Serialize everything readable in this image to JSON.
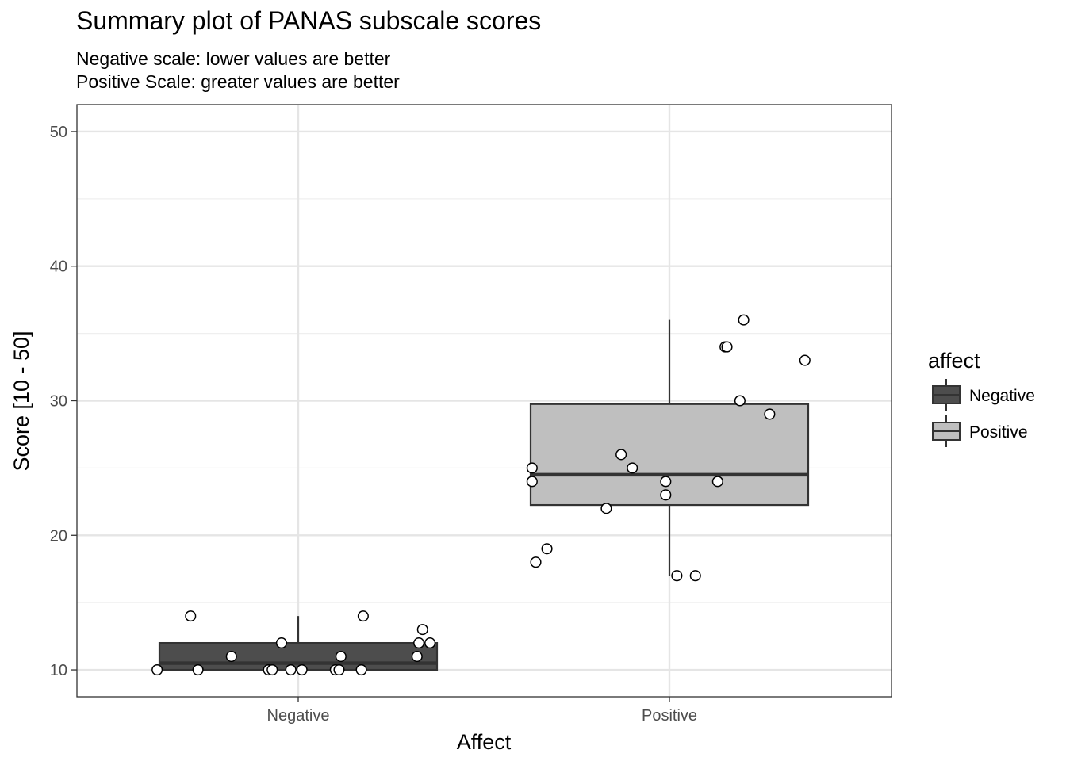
{
  "chart_data": {
    "type": "box",
    "title": "Summary plot of PANAS subscale scores",
    "subtitle": [
      "Negative scale: lower values are better",
      "Positive Scale: greater values are better"
    ],
    "xlabel": "Affect",
    "ylabel": "Score [10 - 50]",
    "categories": [
      "Negative",
      "Positive"
    ],
    "ylim": [
      8,
      52
    ],
    "yticks": [
      10,
      20,
      30,
      40,
      50
    ],
    "grid": true,
    "legend": {
      "title": "affect",
      "position": "right",
      "entries": [
        {
          "label": "Negative",
          "color": "#4d4d4d"
        },
        {
          "label": "Positive",
          "color": "#bfbfbf"
        }
      ]
    },
    "boxes": [
      {
        "category": "Negative",
        "fill": "#4d4d4d",
        "min": 10,
        "q1": 10,
        "median": 10.5,
        "q3": 12,
        "max": 14
      },
      {
        "category": "Positive",
        "fill": "#bfbfbf",
        "min": 17,
        "q1": 22.25,
        "median": 24.5,
        "q3": 29.75,
        "max": 36
      }
    ],
    "points": [
      {
        "category": "Negative",
        "jitter": -0.38,
        "value": 10
      },
      {
        "category": "Negative",
        "jitter": -0.29,
        "value": 14
      },
      {
        "category": "Negative",
        "jitter": -0.27,
        "value": 10
      },
      {
        "category": "Negative",
        "jitter": -0.18,
        "value": 11
      },
      {
        "category": "Negative",
        "jitter": -0.08,
        "value": 10
      },
      {
        "category": "Negative",
        "jitter": -0.07,
        "value": 10
      },
      {
        "category": "Negative",
        "jitter": -0.045,
        "value": 12
      },
      {
        "category": "Negative",
        "jitter": -0.02,
        "value": 10
      },
      {
        "category": "Negative",
        "jitter": 0.01,
        "value": 10
      },
      {
        "category": "Negative",
        "jitter": 0.1,
        "value": 10
      },
      {
        "category": "Negative",
        "jitter": 0.11,
        "value": 10
      },
      {
        "category": "Negative",
        "jitter": 0.115,
        "value": 11
      },
      {
        "category": "Negative",
        "jitter": 0.17,
        "value": 10
      },
      {
        "category": "Negative",
        "jitter": 0.175,
        "value": 14
      },
      {
        "category": "Negative",
        "jitter": 0.32,
        "value": 11
      },
      {
        "category": "Negative",
        "jitter": 0.325,
        "value": 12
      },
      {
        "category": "Negative",
        "jitter": 0.335,
        "value": 13
      },
      {
        "category": "Negative",
        "jitter": 0.355,
        "value": 12
      },
      {
        "category": "Positive",
        "jitter": -0.37,
        "value": 25
      },
      {
        "category": "Positive",
        "jitter": -0.37,
        "value": 24
      },
      {
        "category": "Positive",
        "jitter": -0.36,
        "value": 18
      },
      {
        "category": "Positive",
        "jitter": -0.33,
        "value": 19
      },
      {
        "category": "Positive",
        "jitter": -0.17,
        "value": 22
      },
      {
        "category": "Positive",
        "jitter": -0.13,
        "value": 26
      },
      {
        "category": "Positive",
        "jitter": -0.1,
        "value": 25
      },
      {
        "category": "Positive",
        "jitter": -0.01,
        "value": 24
      },
      {
        "category": "Positive",
        "jitter": -0.01,
        "value": 23
      },
      {
        "category": "Positive",
        "jitter": 0.02,
        "value": 17
      },
      {
        "category": "Positive",
        "jitter": 0.07,
        "value": 17
      },
      {
        "category": "Positive",
        "jitter": 0.13,
        "value": 24
      },
      {
        "category": "Positive",
        "jitter": 0.15,
        "value": 34
      },
      {
        "category": "Positive",
        "jitter": 0.155,
        "value": 34
      },
      {
        "category": "Positive",
        "jitter": 0.19,
        "value": 30
      },
      {
        "category": "Positive",
        "jitter": 0.2,
        "value": 36
      },
      {
        "category": "Positive",
        "jitter": 0.27,
        "value": 29
      },
      {
        "category": "Positive",
        "jitter": 0.365,
        "value": 33
      }
    ]
  }
}
